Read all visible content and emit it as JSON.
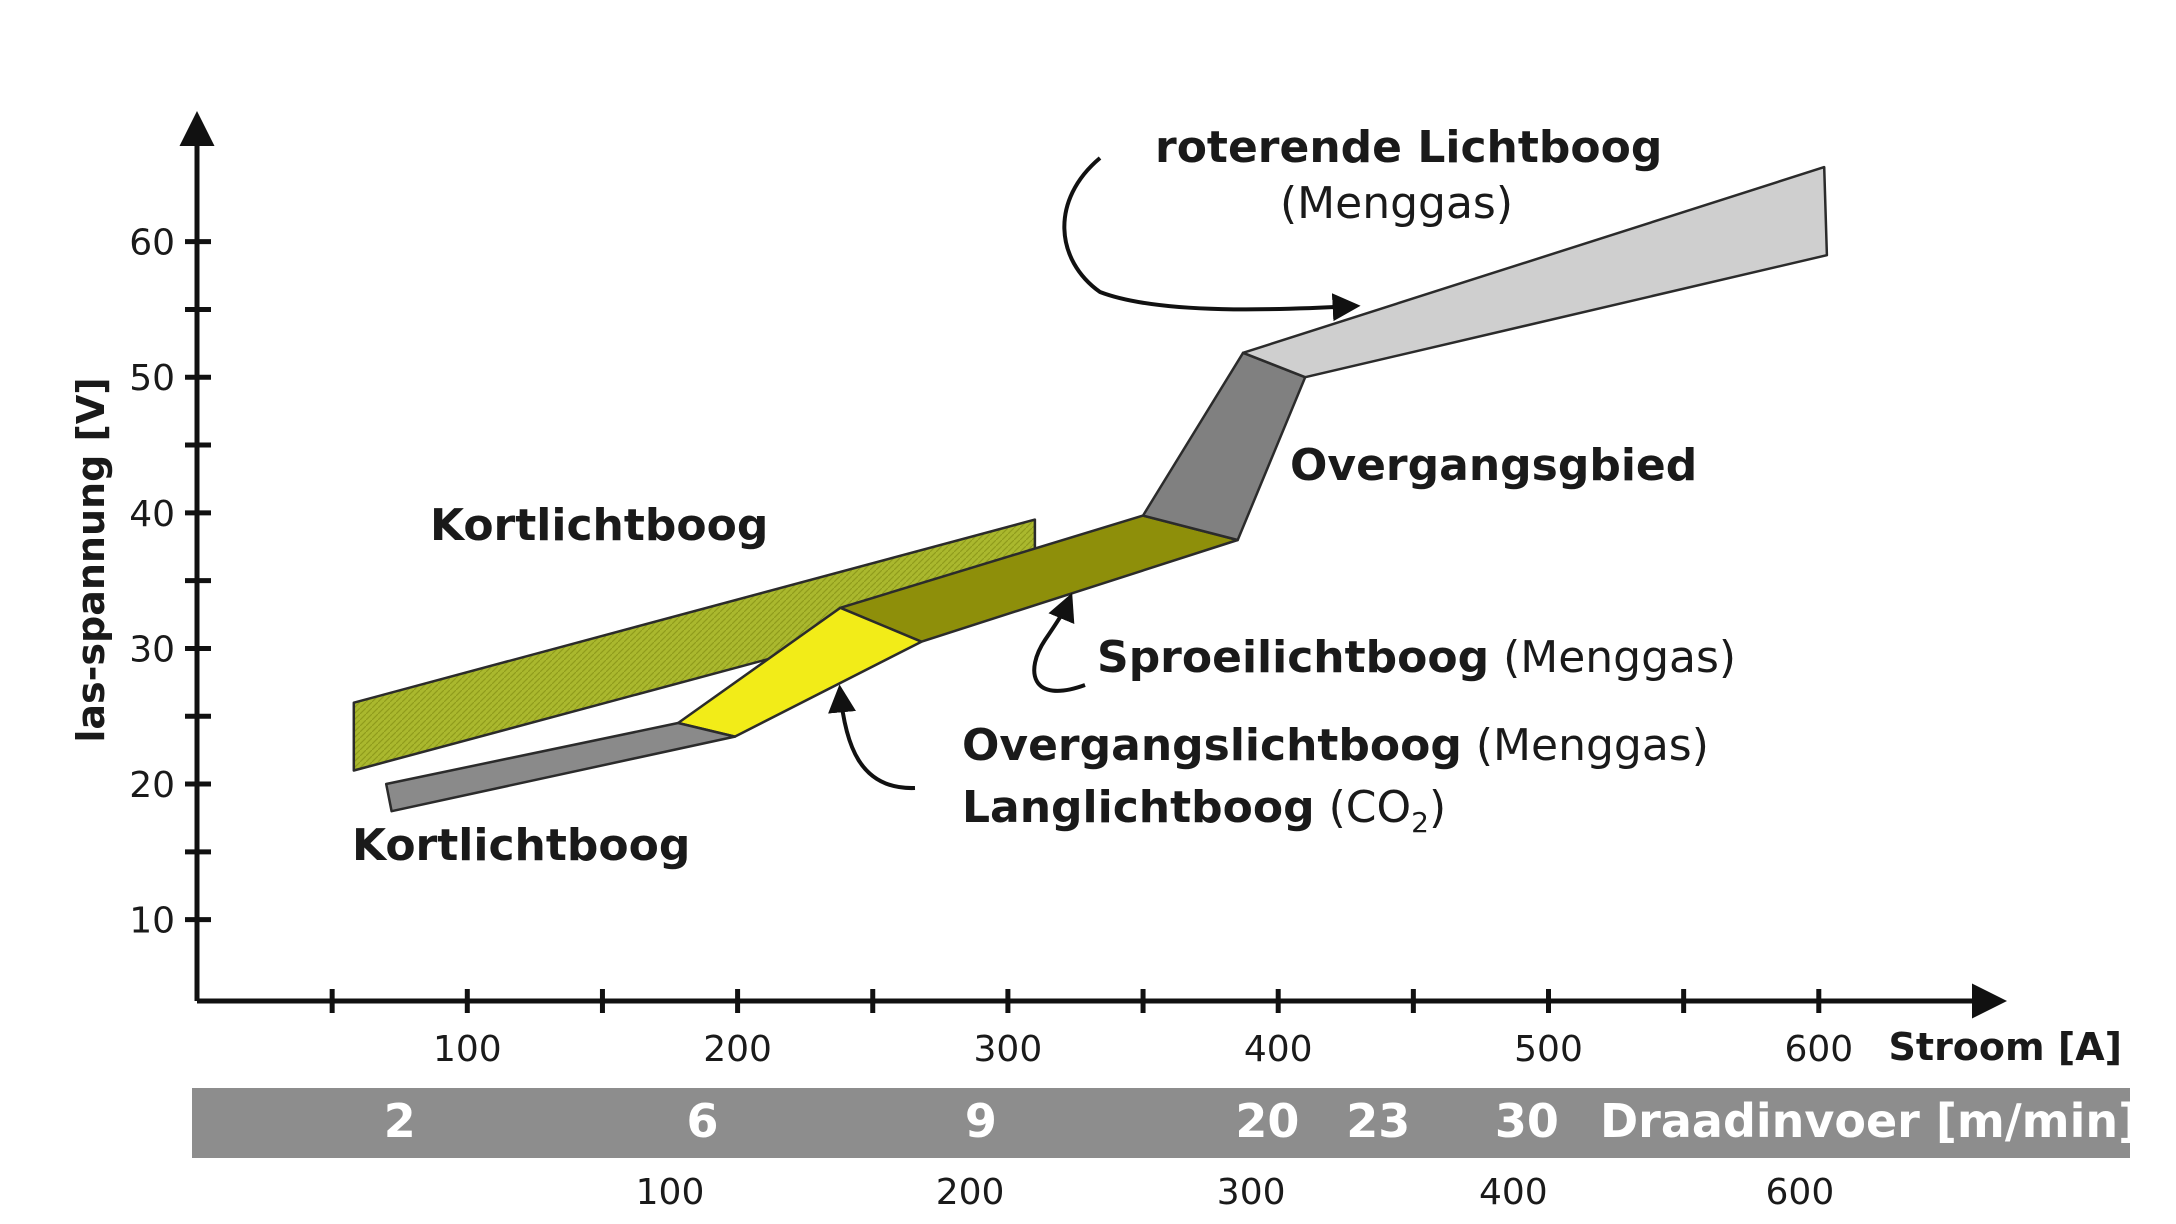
{
  "chart_data": {
    "type": "area",
    "title": "",
    "ylabel": "las-spannung [V]",
    "xlabel": "Stroom [A]",
    "ylim": [
      4,
      66
    ],
    "xlim": [
      0,
      670
    ],
    "y_ticks": [
      10,
      20,
      30,
      40,
      50,
      60
    ],
    "y_minor_ticks": [
      15,
      25,
      35,
      45,
      55
    ],
    "x_ticks": [
      100,
      200,
      300,
      400,
      500,
      600
    ],
    "x_minor_ticks": [
      50,
      150,
      250,
      350,
      450,
      550
    ],
    "wire_feed": {
      "label": "Draadinvoer [m/min]",
      "values": [
        {
          "x": 75,
          "label": "2"
        },
        {
          "x": 187,
          "label": "6"
        },
        {
          "x": 290,
          "label": "9"
        },
        {
          "x": 396,
          "label": "20"
        },
        {
          "x": 437,
          "label": "23"
        },
        {
          "x": 492,
          "label": "30"
        }
      ],
      "secondary_scale": [
        {
          "x": 175,
          "label": "100"
        },
        {
          "x": 286,
          "label": "200"
        },
        {
          "x": 390,
          "label": "300"
        },
        {
          "x": 487,
          "label": "400"
        },
        {
          "x": 593,
          "label": "600"
        }
      ]
    },
    "regions": [
      {
        "name": "kortlichtboog-menggas",
        "color": "#aab82e",
        "points": [
          [
            58,
            26
          ],
          [
            310,
            39.5
          ],
          [
            310,
            34.5
          ],
          [
            58,
            21
          ]
        ]
      },
      {
        "name": "sproeilichtboog",
        "color": "#8e8f0a",
        "points": [
          [
            238,
            33
          ],
          [
            350,
            39.8
          ],
          [
            385,
            38
          ],
          [
            268,
            30.5
          ]
        ]
      },
      {
        "name": "overgangslichtboog",
        "color": "#f2ec18",
        "points": [
          [
            178,
            24.5
          ],
          [
            238,
            33
          ],
          [
            268,
            30.5
          ],
          [
            199,
            23.5
          ]
        ]
      },
      {
        "name": "kortlichtboog-co2",
        "color": "#8a8a8a",
        "points": [
          [
            70,
            20
          ],
          [
            178,
            24.5
          ],
          [
            199,
            23.5
          ],
          [
            72,
            18
          ]
        ]
      },
      {
        "name": "overgangsgebied",
        "color": "#808080",
        "points": [
          [
            350,
            39.8
          ],
          [
            387,
            51.8
          ],
          [
            410,
            50
          ],
          [
            385,
            38
          ]
        ]
      },
      {
        "name": "roterende-lichtboog",
        "color": "#cfcfcf",
        "points": [
          [
            387,
            51.8
          ],
          [
            602,
            65.5
          ],
          [
            603,
            59
          ],
          [
            410,
            50
          ]
        ]
      }
    ],
    "annotations": {
      "roterende_line1": "roterende Lichtboog",
      "roterende_line2": "(Menggas)",
      "overgangsgebied": "Overgangsgbied",
      "kortlichtboog_top": "Kortlichtboog",
      "sproei_bold": "Sproeilichtboog",
      "sproei_gas": "(Menggas)",
      "overgang_bold": "Overgangslichtboog",
      "overgang_gas": "(Menggas)",
      "lang_bold": "Langlichtboog",
      "lang_gas_prefix": "(CO",
      "lang_gas_sub": "2",
      "lang_gas_suffix": ")",
      "kortlichtboog_bottom": "Kortlichtboog"
    }
  }
}
